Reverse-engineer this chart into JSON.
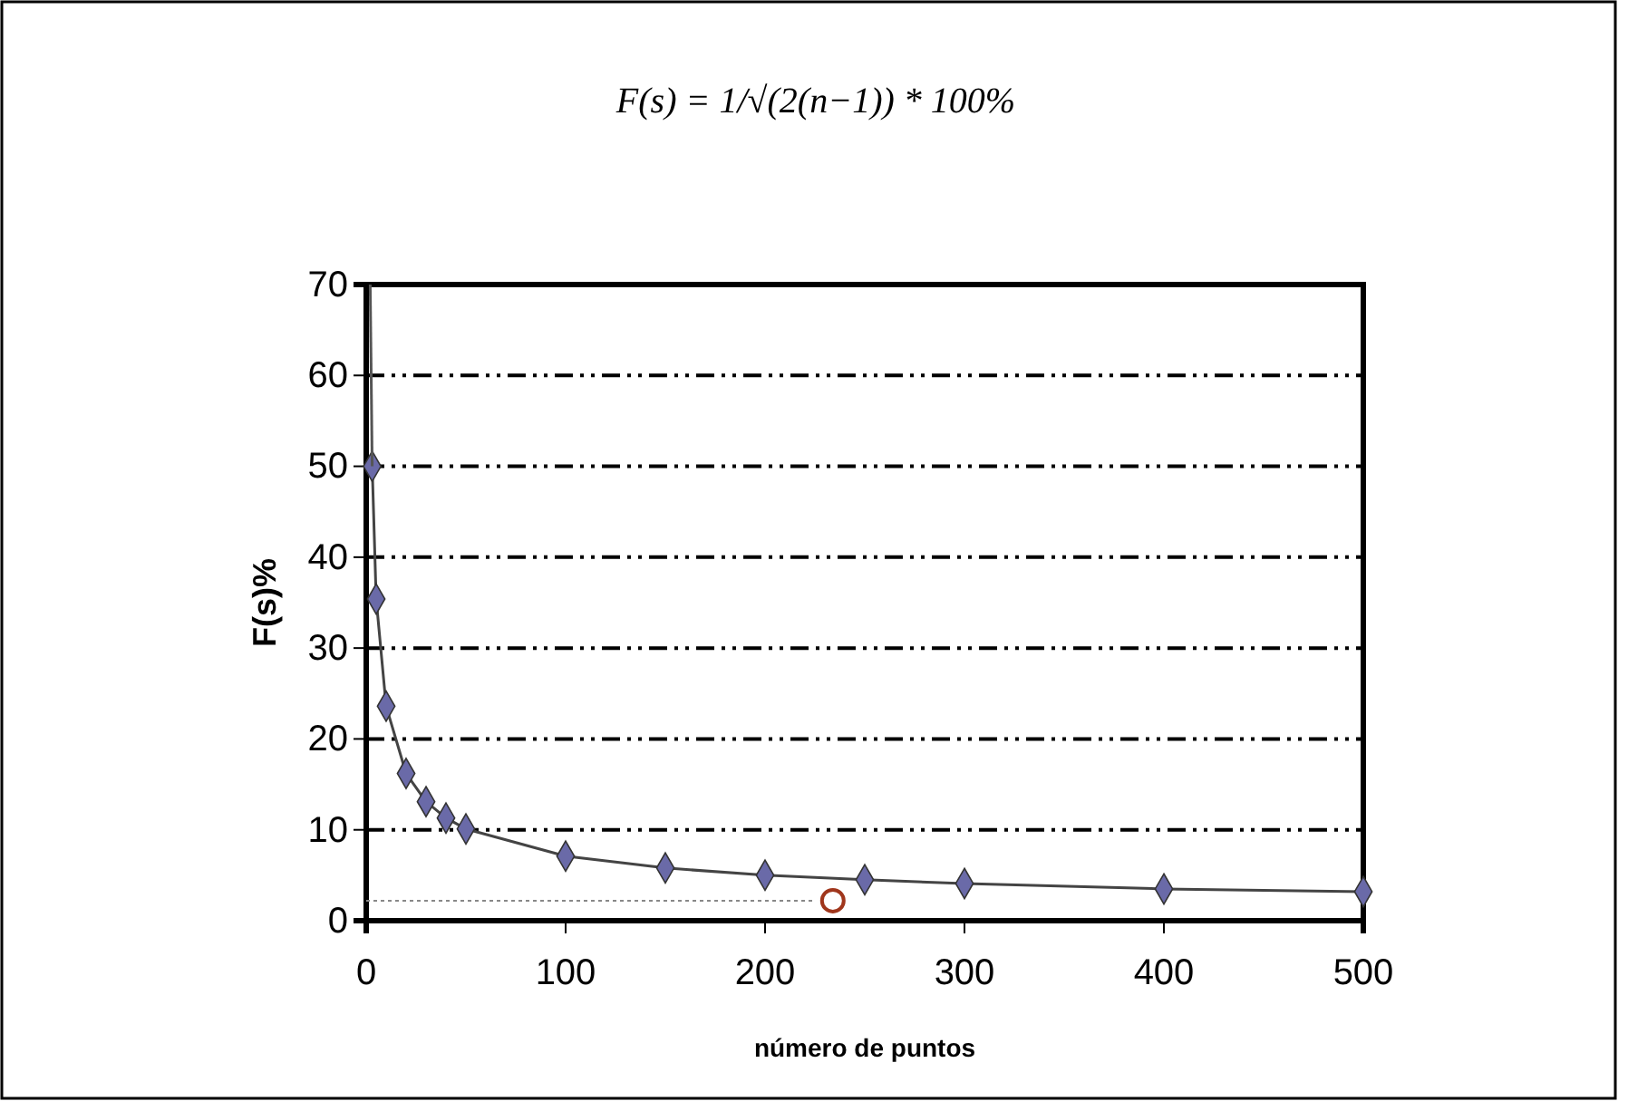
{
  "chart_data": {
    "type": "line",
    "title": "F(s) = 1/√(2(n−1)) * 100%",
    "xlabel": "número de puntos",
    "ylabel": "F(s)%",
    "xlim": [
      0,
      500
    ],
    "xticks": [
      0,
      100,
      200,
      300,
      400,
      500
    ],
    "ylim": [
      0,
      70
    ],
    "yticks": [
      0,
      10,
      20,
      30,
      40,
      50,
      60,
      70
    ],
    "grid": "y",
    "series": [
      {
        "color": "#6a6aa8",
        "marker": "diamond",
        "x": [
          3,
          5,
          10,
          20,
          30,
          40,
          50,
          100,
          150,
          200,
          250,
          300,
          400,
          500
        ],
        "values": [
          50,
          35.4,
          23.6,
          16.2,
          13.1,
          11.3,
          10.1,
          7.1,
          5.8,
          5,
          4.5,
          4.1,
          3.5,
          3.2
        ]
      },
      {
        "color": "#555555",
        "marker": "none",
        "x": [
          2,
          3
        ],
        "values": [
          70,
          50
        ]
      },
      {
        "color": "#888888",
        "marker": "none",
        "line_style": "dotted",
        "x": [
          0,
          225
        ],
        "values": [
          2.2,
          2.2
        ]
      },
      {
        "type": "scatter",
        "color": "#a0361c",
        "marker": "circle",
        "x": [
          234
        ],
        "values": [
          2.2
        ]
      }
    ]
  }
}
